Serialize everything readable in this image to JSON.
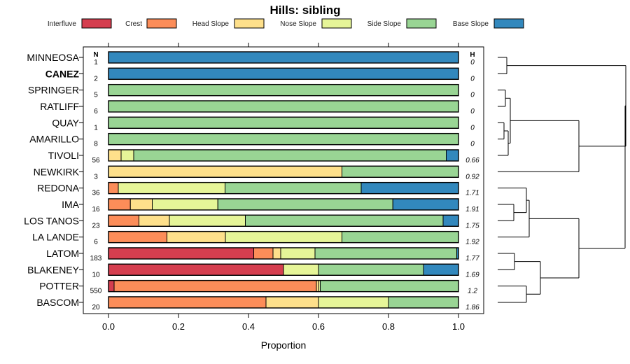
{
  "chart_data": {
    "type": "bar",
    "orientation": "horizontal-stacked",
    "title": "Hills: sibling",
    "xlabel": "Proportion",
    "ylabel": "",
    "xlim": [
      0,
      1
    ],
    "x_ticks": [
      "0.0",
      "0.2",
      "0.4",
      "0.6",
      "0.8",
      "1.0"
    ],
    "n_header": "N",
    "h_header": "H",
    "legend": [
      {
        "name": "Interfluve",
        "color": "#D53E4F"
      },
      {
        "name": "Crest",
        "color": "#FC8D59"
      },
      {
        "name": "Head Slope",
        "color": "#FEE08B"
      },
      {
        "name": "Nose Slope",
        "color": "#E6F598"
      },
      {
        "name": "Side Slope",
        "color": "#99D594"
      },
      {
        "name": "Base Slope",
        "color": "#3288BD"
      }
    ],
    "rows": [
      {
        "label": "MINNEOSA",
        "bold": false,
        "n": "1",
        "h": "0",
        "values": [
          0,
          0,
          0,
          0,
          0,
          1.0
        ]
      },
      {
        "label": "CANEZ",
        "bold": true,
        "n": "2",
        "h": "0",
        "values": [
          0,
          0,
          0,
          0,
          0,
          1.0
        ]
      },
      {
        "label": "SPRINGER",
        "bold": false,
        "n": "5",
        "h": "0",
        "values": [
          0,
          0,
          0,
          0,
          1.0,
          0
        ]
      },
      {
        "label": "RATLIFF",
        "bold": false,
        "n": "6",
        "h": "0",
        "values": [
          0,
          0,
          0,
          0,
          1.0,
          0
        ]
      },
      {
        "label": "QUAY",
        "bold": false,
        "n": "1",
        "h": "0",
        "values": [
          0,
          0,
          0,
          0,
          1.0,
          0
        ]
      },
      {
        "label": "AMARILLO",
        "bold": false,
        "n": "8",
        "h": "0",
        "values": [
          0,
          0,
          0,
          0,
          1.0,
          0
        ]
      },
      {
        "label": "TIVOLI",
        "bold": false,
        "n": "56",
        "h": "0.66",
        "values": [
          0,
          0,
          0.036,
          0.036,
          0.893,
          0.035
        ]
      },
      {
        "label": "NEWKIRK",
        "bold": false,
        "n": "3",
        "h": "0.92",
        "values": [
          0,
          0,
          0.667,
          0,
          0.333,
          0
        ]
      },
      {
        "label": "REDONA",
        "bold": false,
        "n": "36",
        "h": "1.71",
        "values": [
          0,
          0.028,
          0,
          0.305,
          0.389,
          0.278
        ]
      },
      {
        "label": "IMA",
        "bold": false,
        "n": "16",
        "h": "1.91",
        "values": [
          0,
          0.0625,
          0.0625,
          0.1875,
          0.5,
          0.1875
        ]
      },
      {
        "label": "LOS TANOS",
        "bold": false,
        "n": "23",
        "h": "1.75",
        "values": [
          0,
          0.087,
          0.087,
          0.217,
          0.565,
          0.044
        ]
      },
      {
        "label": "LA LANDE",
        "bold": false,
        "n": "6",
        "h": "1.92",
        "values": [
          0,
          0.167,
          0.167,
          0.333,
          0.333,
          0
        ]
      },
      {
        "label": "LATOM",
        "bold": false,
        "n": "183",
        "h": "1.77",
        "values": [
          0.415,
          0.055,
          0.022,
          0.098,
          0.405,
          0.005
        ]
      },
      {
        "label": "BLAKENEY",
        "bold": false,
        "n": "10",
        "h": "1.69",
        "values": [
          0.5,
          0,
          0,
          0.1,
          0.3,
          0.1
        ]
      },
      {
        "label": "POTTER",
        "bold": false,
        "n": "550",
        "h": "1.2",
        "values": [
          0.016,
          0.578,
          0.007,
          0.004,
          0.395,
          0
        ]
      },
      {
        "label": "BASCOM",
        "bold": false,
        "n": "20",
        "h": "1.86",
        "values": [
          0,
          0.45,
          0.15,
          0.2,
          0.2,
          0
        ]
      }
    ]
  }
}
